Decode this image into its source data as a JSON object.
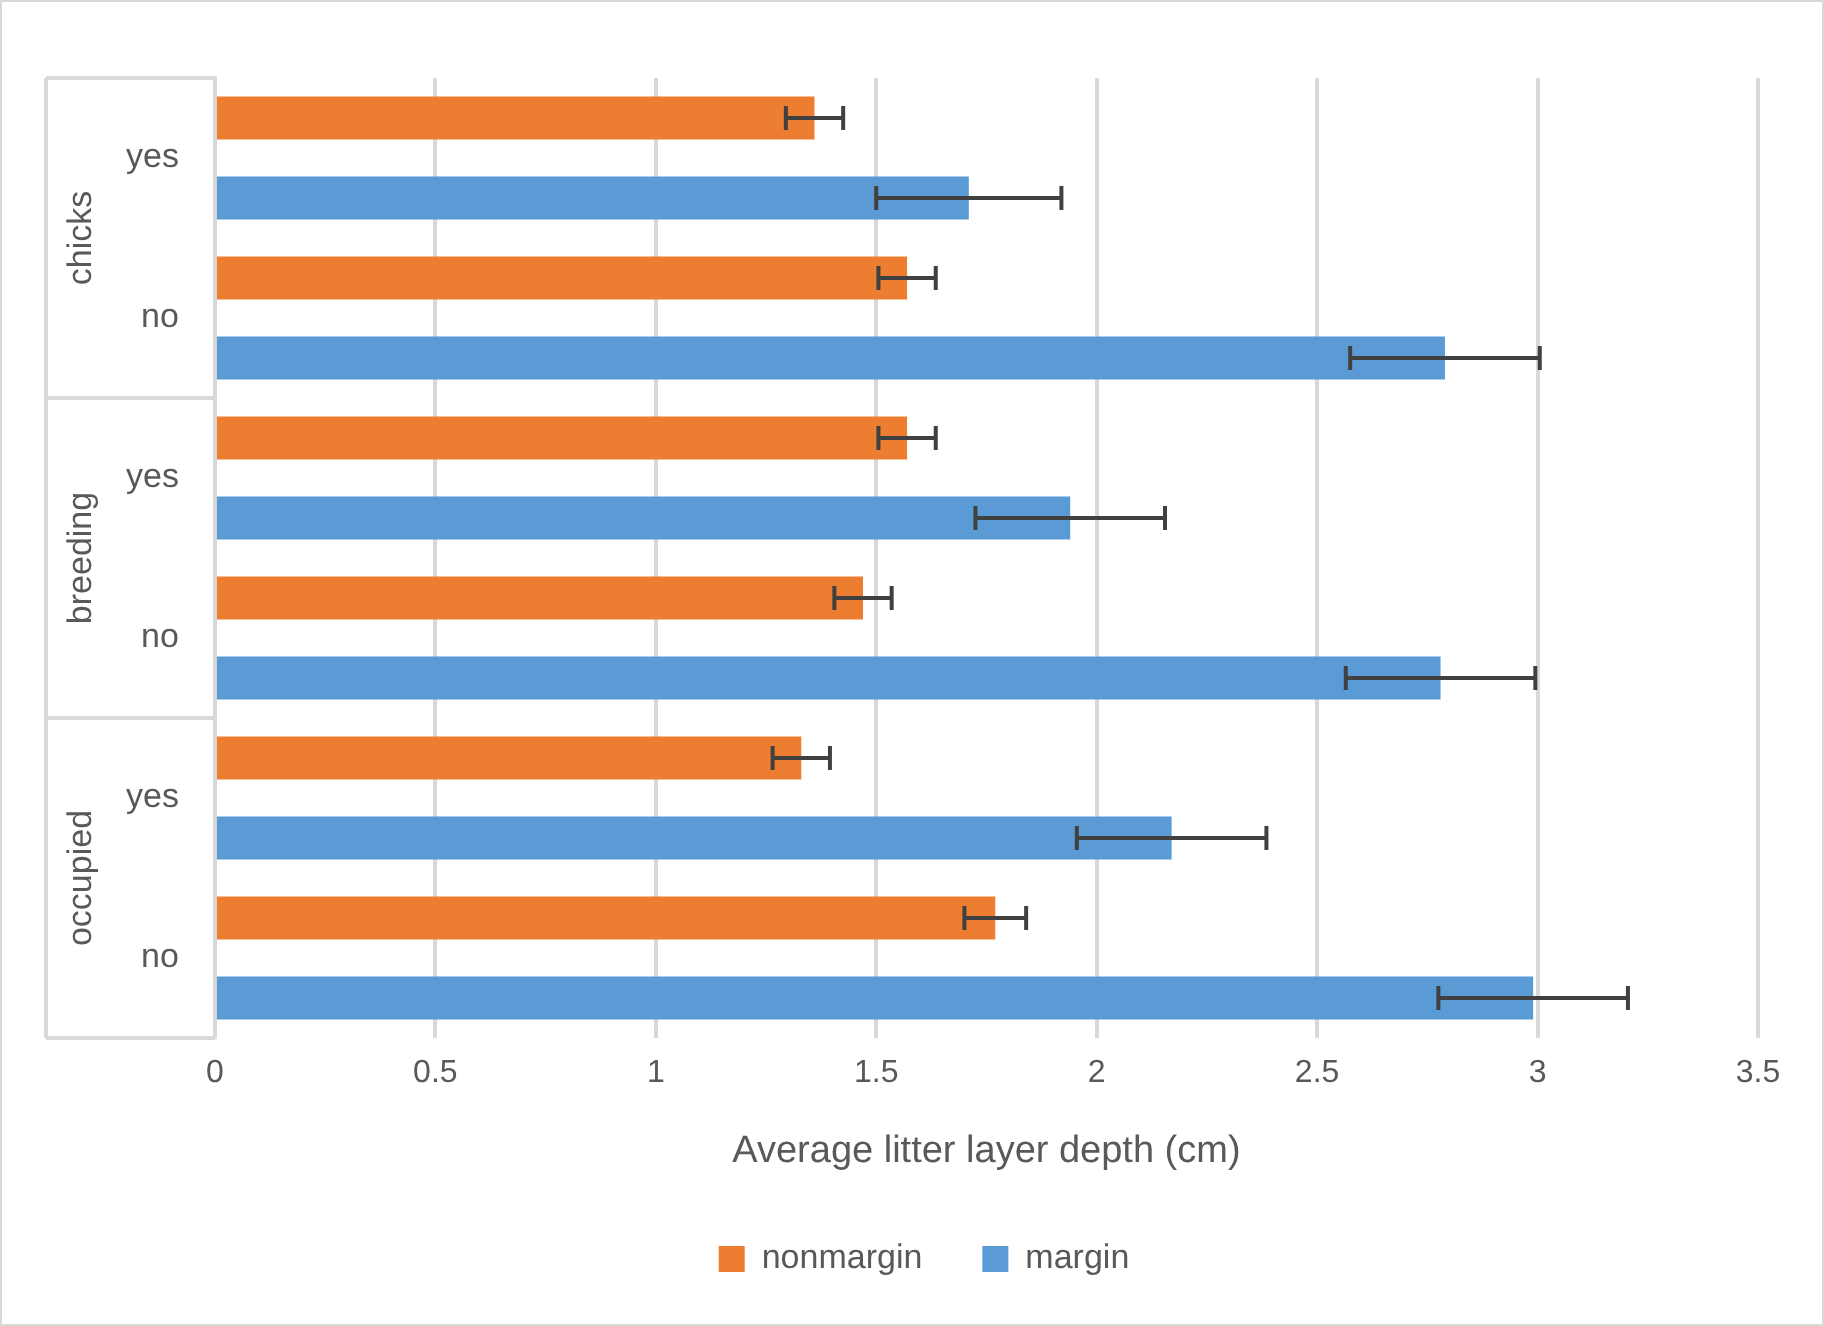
{
  "chart_data": {
    "type": "bar",
    "orientation": "horizontal",
    "categories": [
      "yes",
      "no",
      "yes",
      "no",
      "yes",
      "no"
    ],
    "annotations": [
      "chicks",
      "breeding",
      "occupied"
    ],
    "series": [
      {
        "name": "nonmargin",
        "color": "#ed7d31",
        "values": [
          1.36,
          1.57,
          1.57,
          1.47,
          1.33,
          1.77
        ],
        "errors": [
          0.065,
          0.065,
          0.065,
          0.065,
          0.065,
          0.07
        ]
      },
      {
        "name": "margin",
        "color": "#5b9bd5",
        "values": [
          1.71,
          2.79,
          1.94,
          2.78,
          2.17,
          2.99
        ],
        "errors": [
          0.21,
          0.215,
          0.215,
          0.215,
          0.215,
          0.215
        ]
      }
    ],
    "xlabel": "Average litter layer depth (cm)",
    "xlim": [
      0,
      3.5
    ],
    "xticks": [
      0,
      0.5,
      1,
      1.5,
      2,
      2.5,
      3,
      3.5
    ],
    "grid": "x",
    "legend": "bottom"
  }
}
